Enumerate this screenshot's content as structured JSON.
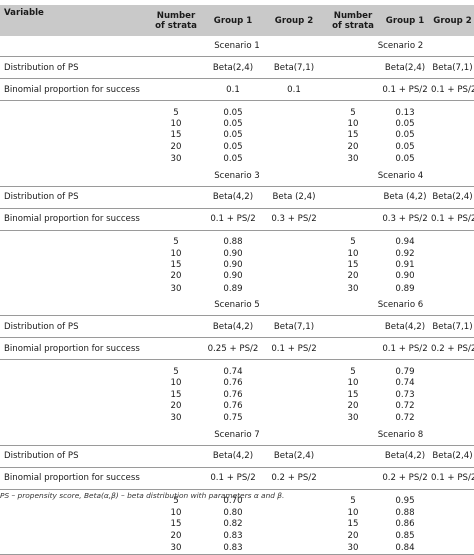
{
  "header": {
    "variable": "Variable",
    "strata_line1": "Number",
    "strata_line2": "of strata",
    "group1": "Group 1",
    "group2": "Group 2"
  },
  "row_labels": {
    "distribution": "Distribution of PS",
    "binomial": "Binomial proportion for success"
  },
  "blocks": [
    {
      "left": {
        "title": "Scenario 1",
        "dist_g1": "Beta(2,4)",
        "dist_g2": "Beta(7,1)",
        "bin_g1": "0.1",
        "bin_g2": "0.1",
        "rows": [
          {
            "n": "5",
            "v": "0.05"
          },
          {
            "n": "10",
            "v": "0.05"
          },
          {
            "n": "15",
            "v": "0.05"
          },
          {
            "n": "20",
            "v": "0.05"
          },
          {
            "n": "30",
            "v": "0.05"
          }
        ]
      },
      "right": {
        "title": "Scenario 2",
        "dist_g1": "Beta(2,4)",
        "dist_g2": "Beta(7,1)",
        "bin_g1": "0.1 + PS/2",
        "bin_g2": "0.1 + PS/2",
        "rows": [
          {
            "n": "5",
            "v": "0.13"
          },
          {
            "n": "10",
            "v": "0.05"
          },
          {
            "n": "15",
            "v": "0.05"
          },
          {
            "n": "20",
            "v": "0.05"
          },
          {
            "n": "30",
            "v": "0.05"
          }
        ]
      }
    },
    {
      "left": {
        "title": "Scenario 3",
        "dist_g1": "Beta(4,2)",
        "dist_g2": "Beta (2,4)",
        "bin_g1": "0.1 + PS/2",
        "bin_g2": "0.3 + PS/2",
        "rows": [
          {
            "n": "5",
            "v": "0.88"
          },
          {
            "n": "10",
            "v": "0.90"
          },
          {
            "n": "15",
            "v": "0.90"
          },
          {
            "n": "20",
            "v": "0.90"
          },
          {
            "n": "30",
            "v": "0.89"
          }
        ]
      },
      "right": {
        "title": "Scenario 4",
        "dist_g1": "Beta (4,2)",
        "dist_g2": "Beta(2,4)",
        "bin_g1": "0.3 + PS/2",
        "bin_g2": "0.1 + PS/2",
        "rows": [
          {
            "n": "5",
            "v": "0.94"
          },
          {
            "n": "10",
            "v": "0.92"
          },
          {
            "n": "15",
            "v": "0.91"
          },
          {
            "n": "20",
            "v": "0.90"
          },
          {
            "n": "30",
            "v": "0.89"
          }
        ]
      }
    },
    {
      "left": {
        "title": "Scenario 5",
        "dist_g1": "Beta(4,2)",
        "dist_g2": "Beta(7,1)",
        "bin_g1": "0.25 + PS/2",
        "bin_g2": "0.1 + PS/2",
        "rows": [
          {
            "n": "5",
            "v": "0.74"
          },
          {
            "n": "10",
            "v": "0.76"
          },
          {
            "n": "15",
            "v": "0.76"
          },
          {
            "n": "20",
            "v": "0.76"
          },
          {
            "n": "30",
            "v": "0.75"
          }
        ]
      },
      "right": {
        "title": "Scenario 6",
        "dist_g1": "Beta(4,2)",
        "dist_g2": "Beta(7,1)",
        "bin_g1": "0.1 + PS/2",
        "bin_g2": "0.2 + PS/2",
        "rows": [
          {
            "n": "5",
            "v": "0.79"
          },
          {
            "n": "10",
            "v": "0.74"
          },
          {
            "n": "15",
            "v": "0.73"
          },
          {
            "n": "20",
            "v": "0.72"
          },
          {
            "n": "30",
            "v": "0.72"
          }
        ]
      }
    },
    {
      "left": {
        "title": "Scenario 7",
        "dist_g1": "Beta(4,2)",
        "dist_g2": "Beta(2,4)",
        "bin_g1": "0.1 + PS/2",
        "bin_g2": "0.2 + PS/2",
        "rows": [
          {
            "n": "5",
            "v": "0.70"
          },
          {
            "n": "10",
            "v": "0.80"
          },
          {
            "n": "15",
            "v": "0.82"
          },
          {
            "n": "20",
            "v": "0.83"
          },
          {
            "n": "30",
            "v": "0.83"
          }
        ]
      },
      "right": {
        "title": "Scenario 8",
        "dist_g1": "Beta(4,2)",
        "dist_g2": "Beta(2,4)",
        "bin_g1": "0.2 + PS/2",
        "bin_g2": "0.1 + PS/2",
        "rows": [
          {
            "n": "5",
            "v": "0.95"
          },
          {
            "n": "10",
            "v": "0.88"
          },
          {
            "n": "15",
            "v": "0.86"
          },
          {
            "n": "20",
            "v": "0.85"
          },
          {
            "n": "30",
            "v": "0.84"
          }
        ]
      }
    }
  ],
  "footnote": "PS – propensity score, Beta(α,β) – beta distribution with parameters α and β."
}
